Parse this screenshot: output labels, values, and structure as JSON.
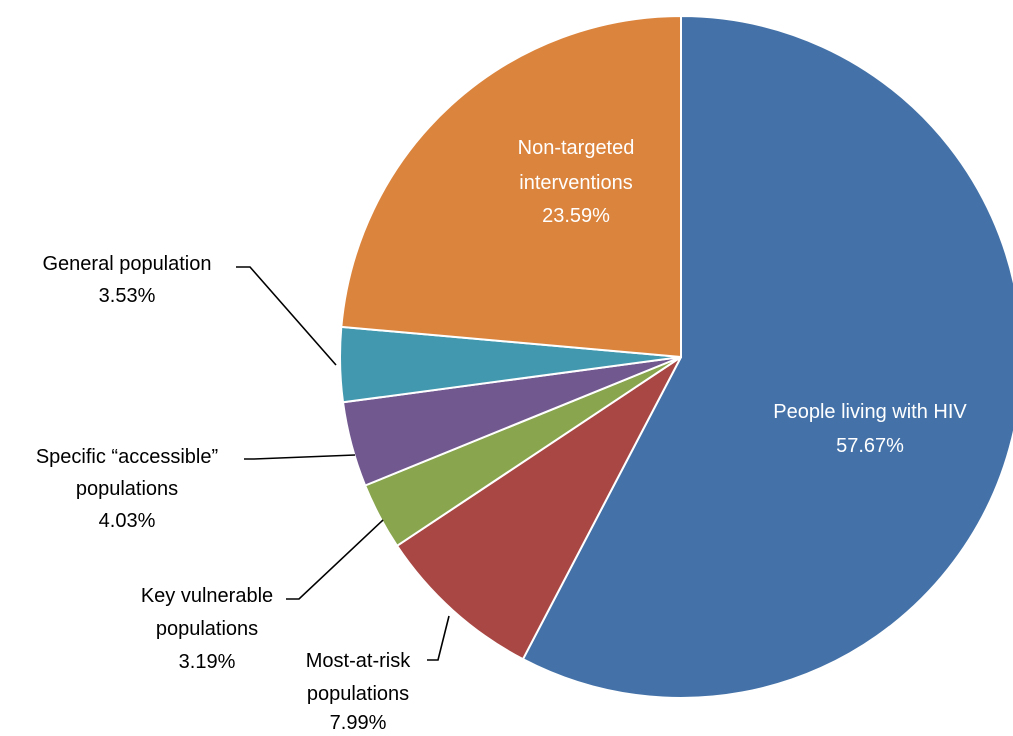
{
  "chart_data": {
    "type": "pie",
    "title": "",
    "start_angle_deg": 0,
    "direction": "clockwise",
    "slices": [
      {
        "label": "People living with HIV",
        "value": 57.67,
        "value_label": "57.67%",
        "color": "#4472a8",
        "label_position": "inside",
        "label_color": "#ffffff"
      },
      {
        "label": "Most-at-risk populations",
        "value": 7.99,
        "value_label": "7.99%",
        "color": "#a84744",
        "label_position": "outside",
        "label_color": "#000000"
      },
      {
        "label": "Key vulnerable populations",
        "value": 3.19,
        "value_label": "3.19%",
        "color": "#89a64e",
        "label_position": "outside",
        "label_color": "#000000"
      },
      {
        "label": "Specific “accessible” populations",
        "value": 4.03,
        "value_label": "4.03%",
        "color": "#71588f",
        "label_position": "outside",
        "label_color": "#000000"
      },
      {
        "label": "General population",
        "value": 3.53,
        "value_label": "3.53%",
        "color": "#4198af",
        "label_position": "outside",
        "label_color": "#000000"
      },
      {
        "label": "Non-targeted interventions",
        "value": 23.59,
        "value_label": "23.59%",
        "color": "#db843d",
        "label_position": "inside",
        "label_color": "#ffffff"
      }
    ]
  }
}
